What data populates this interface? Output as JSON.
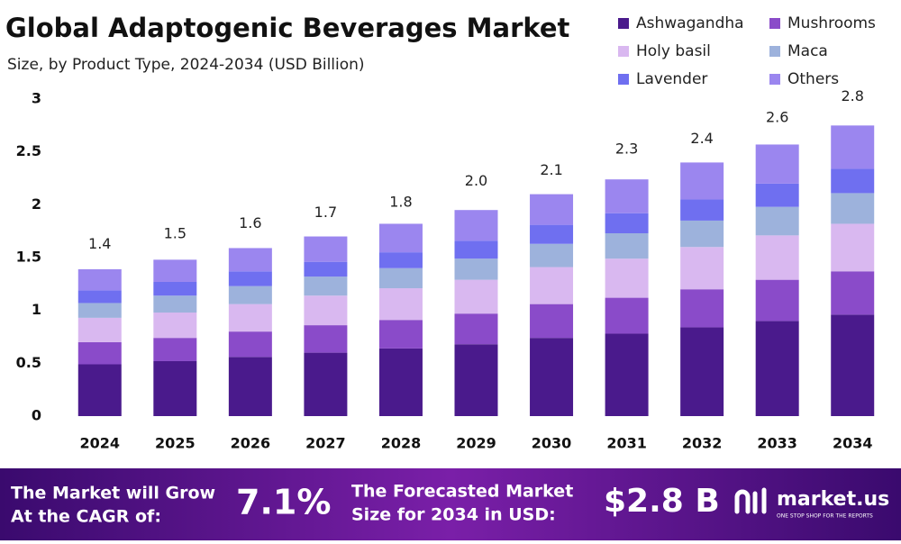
{
  "chart_data": {
    "type": "stacked_bar",
    "title": "Global Adaptogenic Beverages Market",
    "subtitle": "Size, by Product Type, 2024-2034 (USD Billion)",
    "categories": [
      "2024",
      "2025",
      "2026",
      "2027",
      "2028",
      "2029",
      "2030",
      "2031",
      "2032",
      "2033",
      "2034"
    ],
    "series": [
      {
        "name": "Ashwagandha",
        "color": "#4a1a8c",
        "values": [
          0.49,
          0.52,
          0.56,
          0.6,
          0.64,
          0.68,
          0.74,
          0.78,
          0.84,
          0.9,
          0.96
        ]
      },
      {
        "name": "Mushrooms",
        "color": "#8a4bc9",
        "values": [
          0.21,
          0.22,
          0.24,
          0.26,
          0.27,
          0.29,
          0.32,
          0.34,
          0.36,
          0.39,
          0.41
        ]
      },
      {
        "name": "Holy basil",
        "color": "#d9b8f0",
        "values": [
          0.23,
          0.24,
          0.26,
          0.28,
          0.3,
          0.32,
          0.35,
          0.37,
          0.4,
          0.42,
          0.45
        ]
      },
      {
        "name": "Maca",
        "color": "#9db2dc",
        "values": [
          0.14,
          0.16,
          0.17,
          0.18,
          0.19,
          0.2,
          0.22,
          0.24,
          0.25,
          0.27,
          0.29
        ]
      },
      {
        "name": "Lavender",
        "color": "#6f6ff0",
        "values": [
          0.12,
          0.13,
          0.14,
          0.14,
          0.15,
          0.17,
          0.18,
          0.19,
          0.2,
          0.22,
          0.23
        ]
      },
      {
        "name": "Others",
        "color": "#9b86ef",
        "values": [
          0.2,
          0.21,
          0.22,
          0.24,
          0.27,
          0.29,
          0.29,
          0.32,
          0.35,
          0.37,
          0.41
        ]
      }
    ],
    "totals": {
      "values": [
        1.4,
        1.5,
        1.6,
        1.7,
        1.8,
        2.0,
        2.1,
        2.3,
        2.4,
        2.6,
        2.8
      ],
      "value_labels": [
        "1.4",
        "1.5",
        "1.6",
        "1.7",
        "1.8",
        "2.0",
        "2.1",
        "2.3",
        "2.4",
        "2.6",
        "2.8"
      ]
    },
    "ylim": [
      0,
      3
    ],
    "yticks": [
      0,
      0.5,
      1,
      1.5,
      2,
      2.5,
      3
    ],
    "grid": false,
    "legend": "top-right"
  },
  "footer": {
    "cagr_text": [
      "The Market will Grow",
      "At the CAGR of:"
    ],
    "cagr_value": "7.1%",
    "forecast_text": [
      "The Forecasted Market",
      "Size for 2034 in USD:"
    ],
    "forecast_value": "$2.8 B",
    "brand": "market.us",
    "tagline": "ONE STOP SHOP FOR THE REPORTS"
  }
}
